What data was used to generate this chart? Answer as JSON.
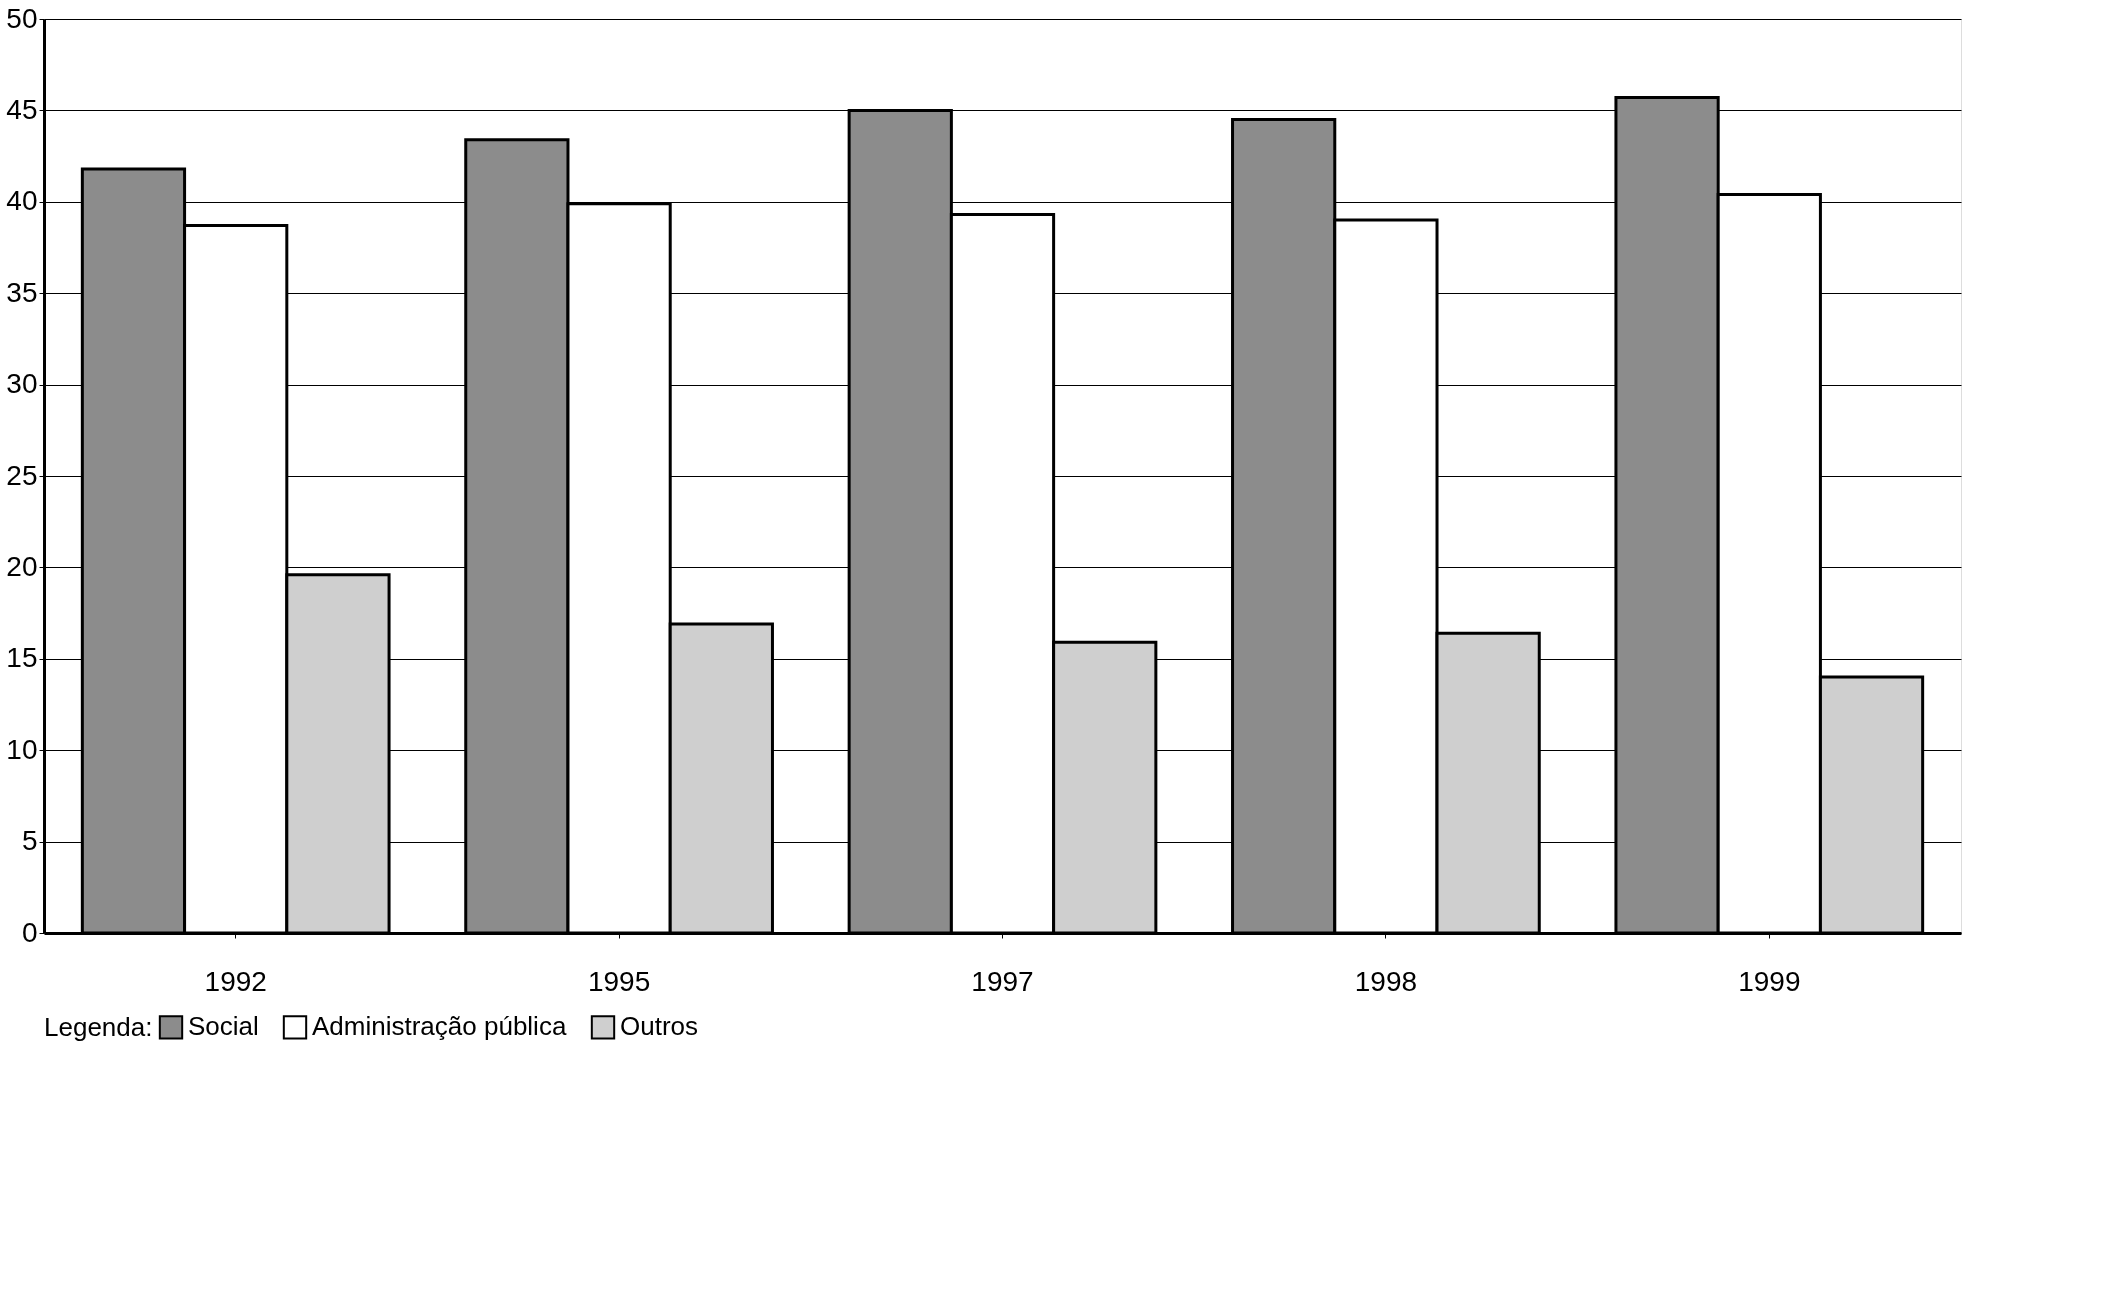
{
  "chart_data": {
    "type": "bar",
    "categories": [
      "1992",
      "1995",
      "1997",
      "1998",
      "1999"
    ],
    "series": [
      {
        "name": "Social",
        "color": "#8c8c8c",
        "values": [
          41.8,
          43.4,
          45.0,
          44.5,
          45.7
        ]
      },
      {
        "name": "Administração pública",
        "color": "#ffffff",
        "values": [
          38.7,
          39.9,
          39.3,
          39.0,
          40.4
        ]
      },
      {
        "name": "Outros",
        "color": "#cfcfcf",
        "values": [
          19.6,
          16.9,
          15.9,
          16.4,
          14.0
        ]
      }
    ],
    "ylim": [
      0,
      50
    ],
    "yticks": [
      0,
      5,
      10,
      15,
      20,
      25,
      30,
      35,
      40,
      45,
      50
    ],
    "grid": "y",
    "legend": "bottom",
    "legend_title": "Legenda:"
  }
}
